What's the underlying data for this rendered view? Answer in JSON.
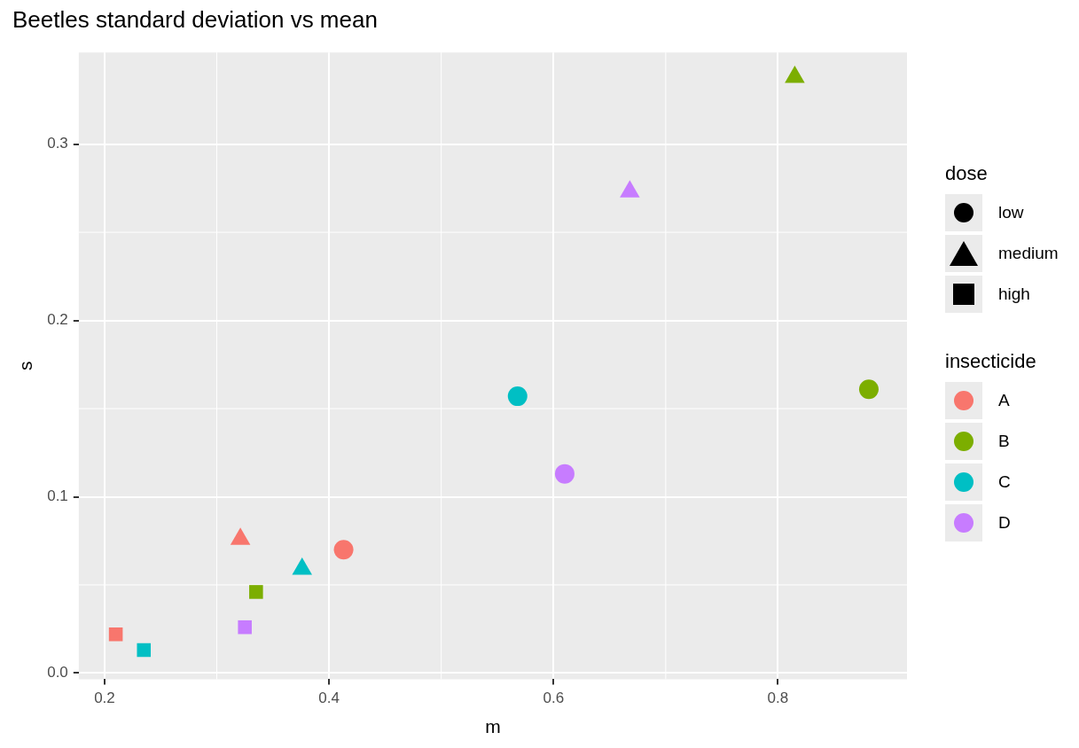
{
  "chart_data": {
    "type": "scatter",
    "title": "Beetles standard deviation vs mean",
    "xlabel": "m",
    "ylabel": "s",
    "legend_title": [
      "dose",
      "insecticide"
    ],
    "legend": "right",
    "grid": true,
    "xlim": [
      0.177,
      0.915
    ],
    "xticks": [
      {
        "value": 0.2,
        "label": "0.2"
      },
      {
        "value": 0.4,
        "label": "0.4"
      },
      {
        "value": 0.6,
        "label": "0.6"
      },
      {
        "value": 0.8,
        "label": "0.8"
      }
    ],
    "ylim": [
      -0.0035,
      0.352
    ],
    "yticks": [
      {
        "value": 0,
        "label": "0.0"
      },
      {
        "value": 0.1,
        "label": "0.1"
      },
      {
        "value": 0.2,
        "label": "0.2"
      },
      {
        "value": 0.3,
        "label": "0.3"
      }
    ],
    "series": [
      {
        "name": "low",
        "marker": "circle",
        "color": "#000000"
      },
      {
        "name": "medium",
        "marker": "triangle",
        "color": "#000000"
      },
      {
        "name": "high",
        "marker": "square",
        "color": "#000000"
      },
      {
        "name": "A",
        "color": "#f8766d",
        "x": [
          0.413,
          0.321,
          0.21
        ],
        "values": [
          0.07,
          0.076,
          0.022
        ]
      },
      {
        "name": "B",
        "color": "#7cae00",
        "x": [
          0.881,
          0.815,
          0.335
        ],
        "values": [
          0.161,
          0.338,
          0.046
        ]
      },
      {
        "name": "C",
        "color": "#00bfc4",
        "x": [
          0.568,
          0.376,
          0.235
        ],
        "values": [
          0.157,
          0.059,
          0.013
        ]
      },
      {
        "name": "D",
        "color": "#c77cff",
        "x": [
          0.61,
          0.668,
          0.325
        ],
        "values": [
          0.113,
          0.273,
          0.026
        ]
      }
    ]
  }
}
